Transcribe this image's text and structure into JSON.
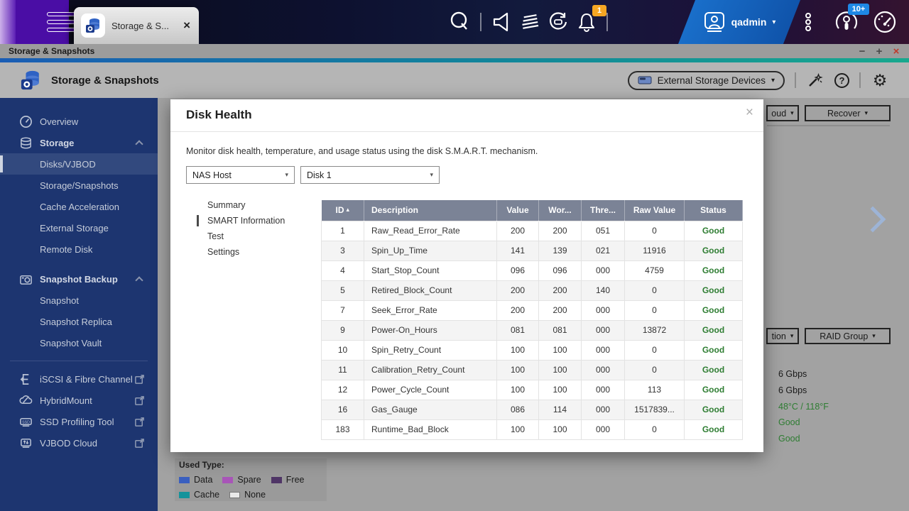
{
  "colors": {
    "accent_green": "#2e7d32",
    "table_header_bg": "#7b8396",
    "sidebar_bg": "#1d3570",
    "badge_orange": "#f5a623",
    "badge_blue": "#1e88e5",
    "close_red": "#c0392b",
    "legend_data": "#3a5fbf",
    "legend_spare": "#a855b8",
    "legend_free": "#4f3566",
    "legend_cache": "#15939b",
    "legend_none": "#e9e9e9"
  },
  "topbar": {
    "tab": {
      "title": "Storage & S...",
      "close": "×"
    },
    "user": {
      "name": "qadmin",
      "caret": "▾"
    },
    "notification_badge": "1",
    "resource_badge": "10+"
  },
  "window_bar": {
    "title": "Storage & Snapshots",
    "minimize": "−",
    "maximize": "+",
    "close": "×"
  },
  "app_header": {
    "title": "Storage & Snapshots",
    "device_selector": "External Storage Devices",
    "device_selector_caret": "▾",
    "help_glyph": "?",
    "gear_glyph": "⚙"
  },
  "sidebar": {
    "items": [
      {
        "label": "Overview"
      },
      {
        "label": "Storage"
      },
      {
        "label": "Disks/VJBOD"
      },
      {
        "label": "Storage/Snapshots"
      },
      {
        "label": "Cache Acceleration"
      },
      {
        "label": "External Storage"
      },
      {
        "label": "Remote Disk"
      },
      {
        "label": "Snapshot Backup"
      },
      {
        "label": "Snapshot"
      },
      {
        "label": "Snapshot Replica"
      },
      {
        "label": "Snapshot Vault"
      },
      {
        "label": "iSCSI & Fibre Channel"
      },
      {
        "label": "HybridMount"
      },
      {
        "label": "SSD Profiling Tool"
      },
      {
        "label": "VJBOD Cloud"
      }
    ]
  },
  "background": {
    "top_buttons": [
      {
        "label": "oud",
        "caret": "▾"
      },
      {
        "label": "Recover",
        "caret": "▾"
      }
    ],
    "mid_buttons": [
      {
        "label": "tion",
        "caret": "▾"
      },
      {
        "label": "RAID Group",
        "caret": "▾"
      }
    ],
    "info_lines": [
      {
        "text": "6 Gbps",
        "tone": "dark"
      },
      {
        "text": "6 Gbps",
        "tone": "dark"
      },
      {
        "text": "48°C / 118°F",
        "tone": "green"
      },
      {
        "text": "Good",
        "tone": "green"
      },
      {
        "text": "Good",
        "tone": "green"
      }
    ],
    "legend": {
      "title": "Used Type:",
      "items": [
        {
          "label": "Data"
        },
        {
          "label": "Spare"
        },
        {
          "label": "Free"
        },
        {
          "label": "Cache"
        },
        {
          "label": "None"
        }
      ]
    }
  },
  "modal": {
    "title": "Disk Health",
    "close": "×",
    "description": "Monitor disk health, temperature, and usage status using the disk S.M.A.R.T. mechanism.",
    "host_selector": "NAS Host",
    "disk_selector": "Disk 1",
    "selector_caret": "▾",
    "menu": [
      "Summary",
      "SMART Information",
      "Test",
      "Settings"
    ],
    "selected_menu": "SMART Information",
    "table": {
      "columns": [
        "ID",
        "Description",
        "Value",
        "Wor...",
        "Thre...",
        "Raw Value",
        "Status"
      ],
      "sort_caret": "▴",
      "rows": [
        {
          "id": "1",
          "description": "Raw_Read_Error_Rate",
          "value": "200",
          "worst": "200",
          "threshold": "051",
          "raw": "0",
          "status": "Good"
        },
        {
          "id": "3",
          "description": "Spin_Up_Time",
          "value": "141",
          "worst": "139",
          "threshold": "021",
          "raw": "11916",
          "status": "Good"
        },
        {
          "id": "4",
          "description": "Start_Stop_Count",
          "value": "096",
          "worst": "096",
          "threshold": "000",
          "raw": "4759",
          "status": "Good"
        },
        {
          "id": "5",
          "description": "Retired_Block_Count",
          "value": "200",
          "worst": "200",
          "threshold": "140",
          "raw": "0",
          "status": "Good"
        },
        {
          "id": "7",
          "description": "Seek_Error_Rate",
          "value": "200",
          "worst": "200",
          "threshold": "000",
          "raw": "0",
          "status": "Good"
        },
        {
          "id": "9",
          "description": "Power-On_Hours",
          "value": "081",
          "worst": "081",
          "threshold": "000",
          "raw": "13872",
          "status": "Good"
        },
        {
          "id": "10",
          "description": "Spin_Retry_Count",
          "value": "100",
          "worst": "100",
          "threshold": "000",
          "raw": "0",
          "status": "Good"
        },
        {
          "id": "11",
          "description": "Calibration_Retry_Count",
          "value": "100",
          "worst": "100",
          "threshold": "000",
          "raw": "0",
          "status": "Good"
        },
        {
          "id": "12",
          "description": "Power_Cycle_Count",
          "value": "100",
          "worst": "100",
          "threshold": "000",
          "raw": "113",
          "status": "Good"
        },
        {
          "id": "16",
          "description": "Gas_Gauge",
          "value": "086",
          "worst": "114",
          "threshold": "000",
          "raw": "1517839...",
          "status": "Good"
        },
        {
          "id": "183",
          "description": "Runtime_Bad_Block",
          "value": "100",
          "worst": "100",
          "threshold": "000",
          "raw": "0",
          "status": "Good"
        }
      ]
    }
  }
}
